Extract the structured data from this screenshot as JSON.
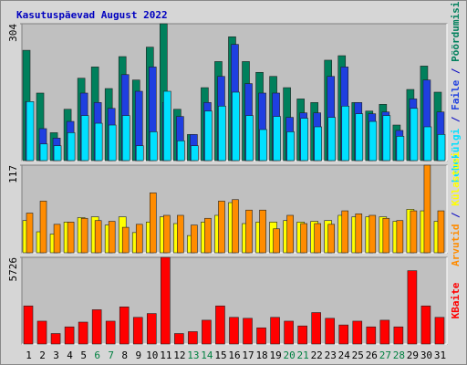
{
  "chart_data": [
    {
      "type": "bar",
      "title": "Kasutuspäevad August 2022",
      "label_separator": " / ",
      "ylim": [
        0,
        304
      ],
      "yticks": [
        304
      ],
      "series": [
        {
          "name": "Pöördumisi",
          "color": "#00805c",
          "values": [
            245,
            150,
            62,
            114,
            183,
            208,
            160,
            231,
            179,
            252,
            304,
            114,
            58,
            162,
            220,
            275,
            220,
            196,
            187,
            162,
            137,
            129,
            223,
            233,
            129,
            110,
            125,
            79,
            158,
            210,
            152
          ]
        },
        {
          "name": "Faile",
          "color": "#1f3fe0",
          "values": [
            131,
            71,
            50,
            87,
            150,
            129,
            116,
            191,
            154,
            208,
            129,
            98,
            58,
            129,
            187,
            258,
            171,
            150,
            150,
            96,
            106,
            106,
            187,
            208,
            129,
            104,
            108,
            67,
            137,
            179,
            108
          ]
        },
        {
          "name": "Lehekülgi",
          "color": "#00e0ff",
          "values": [
            131,
            37,
            33,
            62,
            100,
            83,
            79,
            100,
            33,
            64,
            154,
            44,
            33,
            110,
            121,
            152,
            100,
            69,
            98,
            64,
            94,
            75,
            96,
            121,
            104,
            87,
            100,
            54,
            116,
            75,
            58
          ]
        }
      ]
    },
    {
      "type": "bar",
      "label_separator": " / ",
      "ylim": [
        0,
        117
      ],
      "yticks": [
        117
      ],
      "series": [
        {
          "name": "Külastusi",
          "color": "#ffff00",
          "values": [
            43,
            28,
            25,
            41,
            47,
            48,
            37,
            48,
            27,
            41,
            48,
            39,
            23,
            41,
            50,
            67,
            39,
            41,
            41,
            43,
            41,
            42,
            43,
            50,
            48,
            48,
            48,
            42,
            58,
            56,
            42
          ]
        },
        {
          "name": "Arvutid",
          "color": "#ff8c00",
          "values": [
            53,
            69,
            38,
            41,
            46,
            43,
            42,
            34,
            38,
            80,
            50,
            50,
            37,
            46,
            69,
            71,
            57,
            57,
            32,
            50,
            39,
            39,
            38,
            56,
            52,
            50,
            46,
            43,
            56,
            117,
            56
          ]
        }
      ]
    },
    {
      "type": "bar",
      "ylim": [
        0,
        5726
      ],
      "yticks": [
        5726
      ],
      "categories": [
        "1",
        "2",
        "3",
        "4",
        "5",
        "6",
        "7",
        "8",
        "9",
        "10",
        "11",
        "12",
        "13",
        "14",
        "15",
        "16",
        "17",
        "18",
        "19",
        "20",
        "21",
        "22",
        "23",
        "24",
        "25",
        "26",
        "27",
        "28",
        "29",
        "30",
        "31"
      ],
      "label_colors": [
        "#000000",
        "#000000",
        "#000000",
        "#000000",
        "#000000",
        "#008040",
        "#008040",
        "#000000",
        "#000000",
        "#000000",
        "#000000",
        "#000000",
        "#008040",
        "#008040",
        "#000000",
        "#000000",
        "#000000",
        "#000000",
        "#000000",
        "#008040",
        "#008040",
        "#000000",
        "#000000",
        "#000000",
        "#000000",
        "#000000",
        "#008040",
        "#008040",
        "#000000",
        "#000000",
        "#000000"
      ],
      "series": [
        {
          "name": "KBaite",
          "color": "#ff0000",
          "values": [
            2516,
            1510,
            692,
            1132,
            1447,
            2264,
            1510,
            2453,
            1761,
            2013,
            5726,
            692,
            818,
            1573,
            2516,
            1761,
            1698,
            1069,
            1761,
            1510,
            1195,
            2076,
            1698,
            1258,
            1510,
            1132,
            1573,
            1132,
            4844,
            2516,
            1761
          ]
        }
      ]
    }
  ]
}
